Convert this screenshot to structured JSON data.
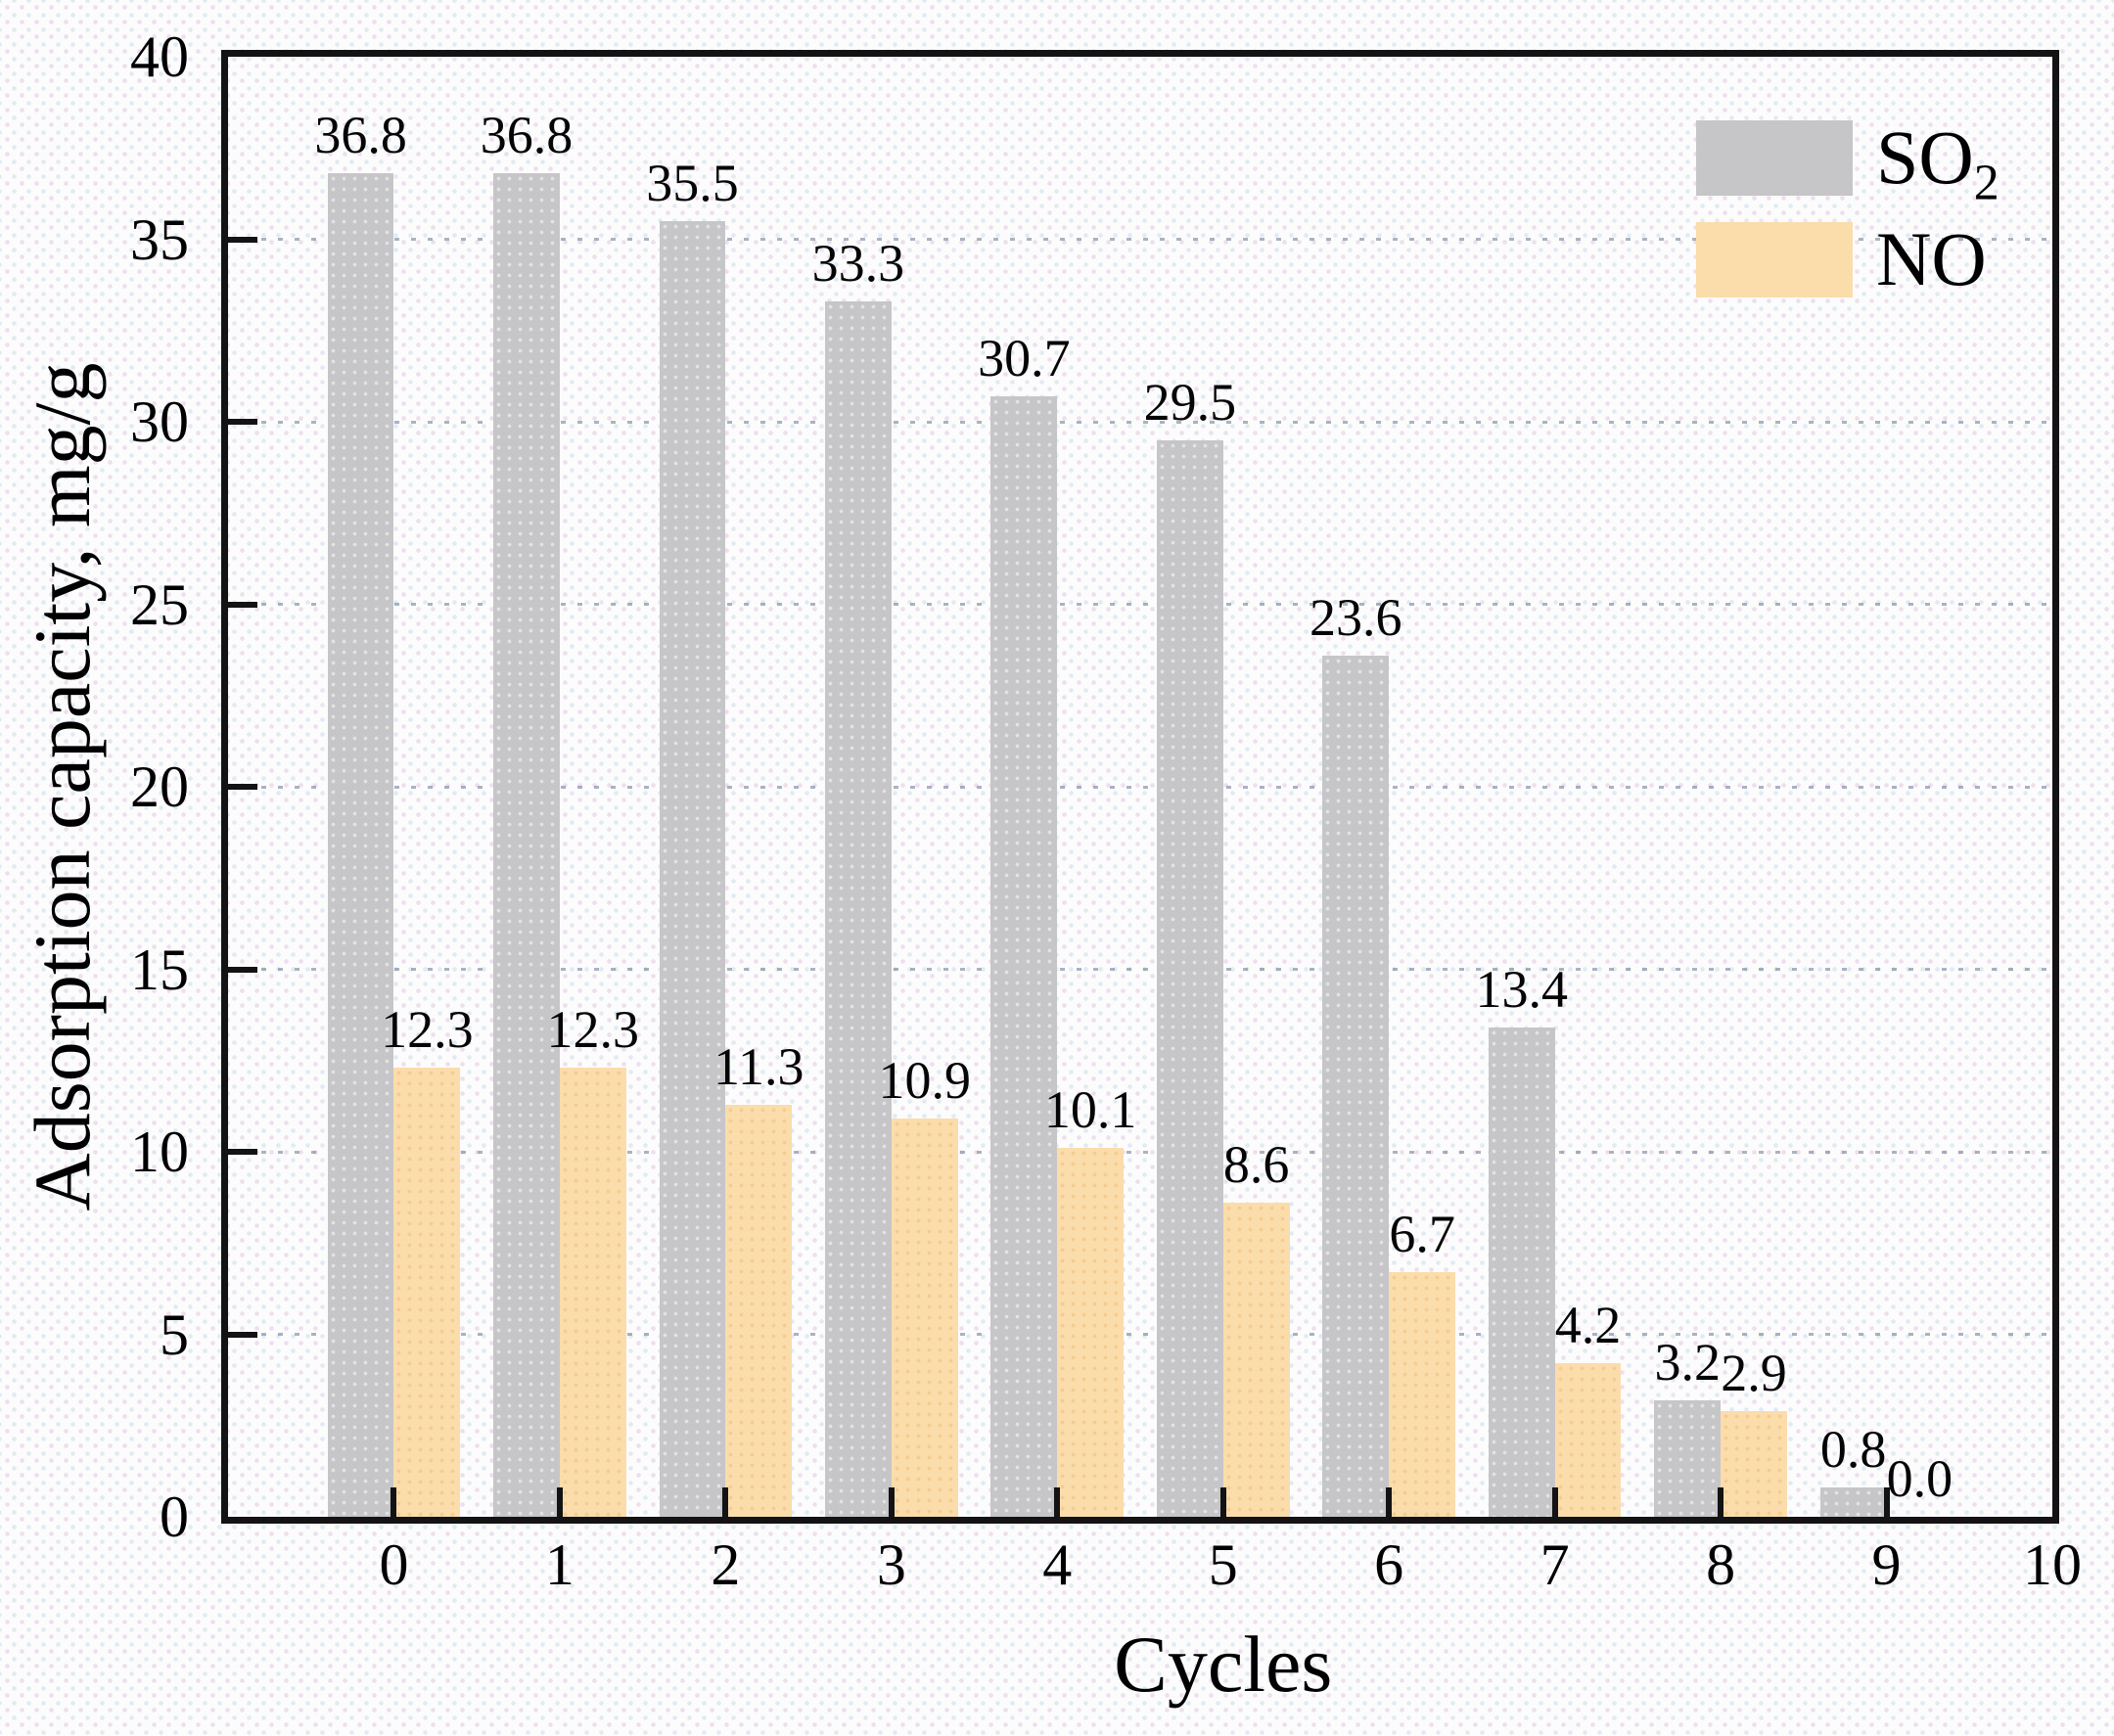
{
  "chart_data": {
    "type": "bar",
    "title": "",
    "xlabel": "Cycles",
    "ylabel": "Adsorption capacity, mg/g",
    "categories": [
      0,
      1,
      2,
      3,
      4,
      5,
      6,
      7,
      8,
      9
    ],
    "series": [
      {
        "name": "SO2",
        "color": "#c6c6c9",
        "values": [
          36.8,
          36.8,
          35.5,
          33.3,
          30.7,
          29.5,
          23.6,
          13.4,
          3.2,
          0.8
        ],
        "labels": [
          "36.8",
          "36.8",
          "35.5",
          "33.3",
          "30.7",
          "29.5",
          "23.6",
          "13.4",
          "3.2",
          "0.8"
        ]
      },
      {
        "name": "NO",
        "color": "#fbdcab",
        "values": [
          12.3,
          12.3,
          11.3,
          10.9,
          10.1,
          8.6,
          6.7,
          4.2,
          2.9,
          0.0
        ],
        "labels": [
          "12.3",
          "12.3",
          "11.3",
          "10.9",
          "10.1",
          "8.6",
          "6.7",
          "4.2",
          "2.9",
          "0.0"
        ]
      }
    ],
    "xlim": [
      -1,
      10
    ],
    "ylim": [
      0,
      40
    ],
    "x_ticks": [
      0,
      1,
      2,
      3,
      4,
      5,
      6,
      7,
      8,
      9,
      10
    ],
    "x_tick_labels": [
      "0",
      "1",
      "2",
      "3",
      "4",
      "5",
      "6",
      "7",
      "8",
      "9",
      "10"
    ],
    "y_ticks": [
      0,
      5,
      10,
      15,
      20,
      25,
      30,
      35,
      40
    ],
    "y_tick_labels": [
      "0",
      "5",
      "10",
      "15",
      "20",
      "25",
      "30",
      "35",
      "40"
    ],
    "grid_y": [
      5,
      10,
      15,
      20,
      25,
      30,
      35
    ],
    "bar_width": 0.4,
    "grid": "dotted-horizontal",
    "legend_position": "top-right-inside",
    "legend": [
      {
        "text": "SO",
        "sub": "2"
      },
      {
        "text": "NO",
        "sub": ""
      }
    ]
  },
  "style": {
    "axis_color": "#131313",
    "grid_color": "#7a8ca3",
    "label_color": "#050505"
  }
}
